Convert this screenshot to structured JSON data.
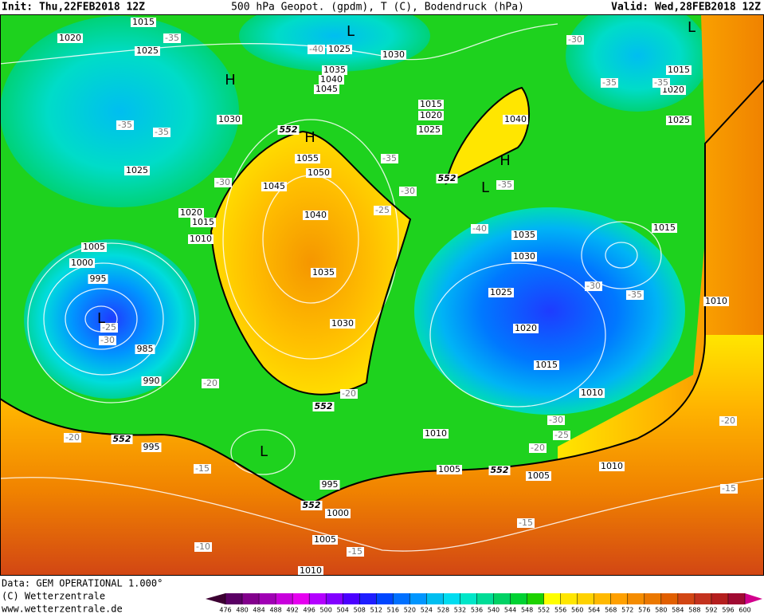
{
  "header": {
    "init": "Init: Thu,22FEB2018 12Z",
    "title": "500 hPa Geopot. (gpdm), T (C), Bodendruck (hPa)",
    "valid": "Valid: Wed,28FEB2018 12Z"
  },
  "map": {
    "pressure_labels": [
      "1015",
      "1020",
      "1025",
      "1025",
      "1030",
      "1035",
      "1040",
      "1045",
      "1030",
      "1015",
      "1020",
      "1025",
      "1040",
      "1055",
      "1050",
      "1045",
      "1025",
      "1020",
      "1015",
      "1010",
      "1040",
      "1035",
      "1030",
      "1005",
      "1000",
      "995",
      "985",
      "990",
      "995",
      "995",
      "1000",
      "1005",
      "1010",
      "1015",
      "1020",
      "1025",
      "1015",
      "1035",
      "1030",
      "1025",
      "1020",
      "1015",
      "1010",
      "1010",
      "1010",
      "1005",
      "1005",
      "1010"
    ],
    "temperature_labels": [
      "-35",
      "-40",
      "-30",
      "-35",
      "-35",
      "-35",
      "-35",
      "-30",
      "-35",
      "-30",
      "-25",
      "-35",
      "-40",
      "-30",
      "-35",
      "-25",
      "-30",
      "-20",
      "-20",
      "-20",
      "-15",
      "-30",
      "-25",
      "-20",
      "-20",
      "-15",
      "-15",
      "-15",
      "-10"
    ],
    "height_labels": [
      "552",
      "552",
      "552",
      "552",
      "552",
      "552"
    ],
    "centers": [
      "L",
      "L",
      "H",
      "H",
      "H",
      "L",
      "L",
      "L"
    ]
  },
  "footer": {
    "data": "Data: GEM OPERATIONAL 1.000°",
    "copyright": "(C) Wetterzentrale",
    "url": "www.wetterzentrale.de"
  },
  "colorbar": {
    "levels": [
      "476",
      "480",
      "484",
      "488",
      "492",
      "496",
      "500",
      "504",
      "508",
      "512",
      "516",
      "520",
      "524",
      "528",
      "532",
      "536",
      "540",
      "544",
      "548",
      "552",
      "556",
      "560",
      "564",
      "568",
      "572",
      "576",
      "580",
      "584",
      "588",
      "592",
      "596",
      "600"
    ],
    "colors": [
      "#3c0032",
      "#5a0064",
      "#82008c",
      "#a000b4",
      "#c800dc",
      "#e600f0",
      "#b400ff",
      "#8200ff",
      "#4b00ff",
      "#1e1eff",
      "#0046ff",
      "#0070ff",
      "#0096ff",
      "#00bef0",
      "#00dcf0",
      "#00e6c8",
      "#00dc96",
      "#00d264",
      "#00d232",
      "#1ed200",
      "#ffff00",
      "#ffe600",
      "#ffd200",
      "#ffb900",
      "#ffa000",
      "#f58c00",
      "#eb7800",
      "#e15f00",
      "#d24614",
      "#c3321e",
      "#b41e1e",
      "#a00a32",
      "#d2008c"
    ]
  }
}
